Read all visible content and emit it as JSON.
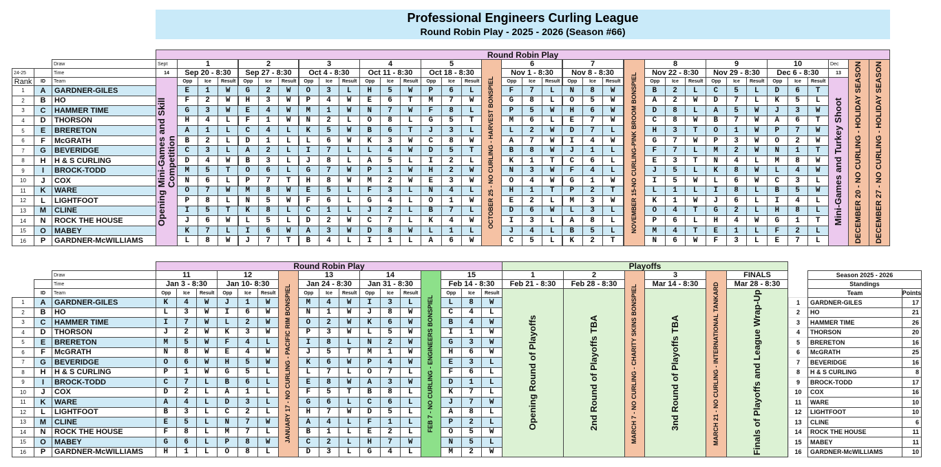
{
  "title": "Professional Engineers Curling League",
  "subtitle": "Round Robin Play - 2025 - 2026 (Season #66)",
  "labels": {
    "draw": "Draw",
    "time": "Time",
    "team": "Team",
    "rank": "Rank",
    "id": "ID",
    "prev_season": "24-25",
    "opp": "Opp",
    "ice": "Ice",
    "result": "Result"
  },
  "colors": {
    "title_bg": "#c9eaf9",
    "round_robin": "#ecc9ee",
    "no_curling": "#f5c2a4",
    "engineers_bonspiel": "#8de08a",
    "playoffs": "#dcf2d4",
    "alt_row": "#cfeaf6"
  },
  "teams": [
    {
      "rank": "1",
      "id": "A",
      "name": "GARDNER-GILES"
    },
    {
      "rank": "2",
      "id": "B",
      "name": "HO"
    },
    {
      "rank": "3",
      "id": "C",
      "name": "HAMMER TIME"
    },
    {
      "rank": "4",
      "id": "D",
      "name": "THORSON"
    },
    {
      "rank": "5",
      "id": "E",
      "name": "BRERETON"
    },
    {
      "rank": "6",
      "id": "F",
      "name": "McGRATH"
    },
    {
      "rank": "7",
      "id": "G",
      "name": "BEVERIDGE"
    },
    {
      "rank": "8",
      "id": "H",
      "name": "H & S CURLING"
    },
    {
      "rank": "9",
      "id": "I",
      "name": "BROCK-TODD"
    },
    {
      "rank": "10",
      "id": "J",
      "name": "COX"
    },
    {
      "rank": "11",
      "id": "K",
      "name": "WARE"
    },
    {
      "rank": "12",
      "id": "L",
      "name": "LIGHTFOOT"
    },
    {
      "rank": "13",
      "id": "M",
      "name": "CLINE"
    },
    {
      "rank": "14",
      "id": "N",
      "name": "ROCK THE HOUSE"
    },
    {
      "rank": "15",
      "id": "O",
      "name": "MABEY"
    },
    {
      "rank": "16",
      "id": "P",
      "name": "GARDNER-McWILLIAMS"
    }
  ],
  "top": {
    "band": "Round Robin Play",
    "opening": {
      "month": "Sept",
      "day": "14",
      "label": "Opening Mini-Games and Skill Competition"
    },
    "mini_games": {
      "month": "Dec",
      "day": "13",
      "label": "Mini-Games and Turkey Shoot"
    },
    "breaks": [
      "OCTOBER 25 - NO CURLING - HARVEST BONSPIEL",
      "NOVEMBER 15-NO CURLING-PINK BROOM BONSPIEL",
      "DECEMBER 20 - NO CURLING - HOLIDAY SEASON",
      "DECEMBER 27 - NO CURLING - HOLIDAY SEASON"
    ],
    "draws": [
      {
        "draw": "1",
        "time": "Sep 20 - 8:30",
        "games": [
          "E1W",
          "F2W",
          "G3W",
          "H4L",
          "A1L",
          "B2L",
          "C3L",
          "D4W",
          "M5T",
          "N6L",
          "O7W",
          "P8L",
          "I5T",
          "J6W",
          "K7L",
          "L8W"
        ]
      },
      {
        "draw": "2",
        "time": "Sep 27 - 8:30",
        "games": [
          "G2W",
          "H3W",
          "E4W",
          "F1W",
          "C4L",
          "D1L",
          "A2L",
          "B3L",
          "O6L",
          "P7T",
          "M8W",
          "N5W",
          "K8L",
          "L5L",
          "I6W",
          "J7T"
        ]
      },
      {
        "draw": "3",
        "time": "Oct 4 - 8:30",
        "games": [
          "O3L",
          "P4W",
          "M1W",
          "N2L",
          "K5W",
          "L6W",
          "I7L",
          "J8L",
          "G7W",
          "H8W",
          "E5L",
          "F6L",
          "C1L",
          "D2W",
          "A3W",
          "B4L"
        ]
      },
      {
        "draw": "4",
        "time": "Oct 11 - 8:30",
        "games": [
          "H5W",
          "E6T",
          "N7W",
          "O8L",
          "B6T",
          "K3W",
          "L4W",
          "A5L",
          "P1W",
          "M2W",
          "F3L",
          "G4L",
          "J2L",
          "C7L",
          "D8W",
          "I1L"
        ]
      },
      {
        "draw": "5",
        "time": "Oct 18 - 8:30",
        "games": [
          "P6L",
          "M7W",
          "F8L",
          "G5T",
          "J3L",
          "C8W",
          "D5T",
          "I2L",
          "H2W",
          "E3W",
          "N4L",
          "O1W",
          "B7L",
          "K4W",
          "L1L",
          "A6W"
        ]
      },
      {
        "draw": "6",
        "time": "Nov 1 - 8:30",
        "games": [
          "F7L",
          "G8L",
          "P5W",
          "M6L",
          "L2W",
          "A7W",
          "B8W",
          "K1T",
          "N3W",
          "O4W",
          "H1T",
          "E2L",
          "D6W",
          "I3L",
          "J4L",
          "C5L"
        ]
      },
      {
        "draw": "7",
        "time": "Nov 8 - 8:30",
        "games": [
          "N8W",
          "O5W",
          "H6W",
          "E7W",
          "D7L",
          "I4W",
          "J1L",
          "C6L",
          "F4L",
          "G1W",
          "P2T",
          "M3W",
          "L3L",
          "A8L",
          "B5L",
          "K2T"
        ]
      },
      {
        "draw": "8",
        "time": "Nov 22 - 8:30",
        "games": [
          "B2L",
          "A2W",
          "D8L",
          "C8W",
          "H3T",
          "G7W",
          "F7L",
          "E3T",
          "J5L",
          "I5W",
          "L1L",
          "K1W",
          "O4T",
          "P6L",
          "M4T",
          "N6W"
        ]
      },
      {
        "draw": "9",
        "time": "Nov 29 - 8:30",
        "games": [
          "C5L",
          "D7L",
          "A5W",
          "B7W",
          "O1W",
          "P3W",
          "M2W",
          "N4L",
          "K8W",
          "L6W",
          "I8L",
          "J6L",
          "G2L",
          "H4W",
          "E1L",
          "F3L"
        ]
      },
      {
        "draw": "10",
        "time": "Dec 6 - 8:30",
        "games": [
          "D6T",
          "K5L",
          "J3W",
          "A6T",
          "P7W",
          "O2W",
          "N1T",
          "M8W",
          "L4W",
          "C3L",
          "B5W",
          "I4L",
          "H8L",
          "G1T",
          "F2L",
          "E7L"
        ]
      }
    ]
  },
  "bottom": {
    "band": "Round Robin Play",
    "playoffs_band": "Playoffs",
    "breaks": [
      "JANUARY 17 - NO CURLING - PACIFIC RIM BONSPIEL",
      "FEB 7 - NO CURLING - ENGINEERS BONSPIEL",
      "MARCH 7 - NO CURLING - CHARITY SKINS BONSPIEL",
      "MARCH 21 - NO CURLING - INTERNATIONAL TANKARD"
    ],
    "draws": [
      {
        "draw": "11",
        "time": "Jan 3 - 8:30",
        "games": [
          "K4W",
          "L3W",
          "I7W",
          "J2W",
          "M5W",
          "N8W",
          "O6W",
          "P1W",
          "C7L",
          "D2L",
          "A4L",
          "B3L",
          "E5L",
          "F8L",
          "G6L",
          "H1L"
        ]
      },
      {
        "draw": "12",
        "time": "Jan 10- 8:30",
        "games": [
          "J1W",
          "I6W",
          "L2W",
          "K3W",
          "F4L",
          "E4W",
          "H5W",
          "G5L",
          "B6L",
          "A1L",
          "D3L",
          "C2L",
          "N7W",
          "M7L",
          "P8W",
          "O8L"
        ]
      },
      {
        "draw": "13",
        "time": "Jan 24 - 8:30",
        "games": [
          "M4W",
          "N1W",
          "O2W",
          "P3W",
          "I8L",
          "J5T",
          "K6W",
          "L7L",
          "E8W",
          "F5T",
          "G6L",
          "H7W",
          "A4L",
          "B1L",
          "C2L",
          "D3L"
        ]
      },
      {
        "draw": "14",
        "time": "Jan 31 - 8:30",
        "games": [
          "I3L",
          "J8W",
          "K6W",
          "L5W",
          "N2W",
          "M1W",
          "P4W",
          "O7L",
          "A3W",
          "B8L",
          "C6L",
          "D5L",
          "F1L",
          "E2L",
          "H7W",
          "G4L"
        ]
      },
      {
        "draw": "15",
        "time": "Feb 14 - 8:30",
        "games": [
          "L8W",
          "C4L",
          "B4W",
          "I1W",
          "G3W",
          "H6W",
          "E3L",
          "F6L",
          "D1L",
          "K7L",
          "J7W",
          "A8L",
          "P2L",
          "O5W",
          "N5L",
          "M2W"
        ]
      }
    ],
    "playoffs": [
      {
        "draw": "1",
        "time": "Feb 21 - 8:30",
        "label": "Opening Round of Playoffs"
      },
      {
        "draw": "2",
        "time": "Feb 28 - 8:30",
        "label": "2nd Round of Playoffs TBA"
      },
      {
        "draw": "3",
        "time": "Mar 14 - 8:30",
        "label": "3nd Round of Playoffs TBA"
      },
      {
        "draw": "FINALS",
        "time": "Mar 28 - 8:30",
        "label": "Finals of Playoffs and League Wrap-Up"
      }
    ]
  },
  "standings": {
    "season": "Season 2025 - 2026",
    "title": "Standings",
    "team_header": "Team",
    "points_header": "Points",
    "rows": [
      {
        "pos": "1",
        "team": "GARDNER-GILES",
        "points": "17"
      },
      {
        "pos": "2",
        "team": "HO",
        "points": "21"
      },
      {
        "pos": "3",
        "team": "HAMMER TIME",
        "points": "26"
      },
      {
        "pos": "4",
        "team": "THORSON",
        "points": "20"
      },
      {
        "pos": "5",
        "team": "BRERETON",
        "points": "16"
      },
      {
        "pos": "6",
        "team": "McGRATH",
        "points": "25"
      },
      {
        "pos": "7",
        "team": "BEVERIDGE",
        "points": "16"
      },
      {
        "pos": "8",
        "team": "H & S CURLING",
        "points": "8"
      },
      {
        "pos": "9",
        "team": "BROCK-TODD",
        "points": "17"
      },
      {
        "pos": "10",
        "team": "COX",
        "points": "16"
      },
      {
        "pos": "11",
        "team": "WARE",
        "points": "10"
      },
      {
        "pos": "12",
        "team": "LIGHTFOOT",
        "points": "10"
      },
      {
        "pos": "13",
        "team": "CLINE",
        "points": "6"
      },
      {
        "pos": "14",
        "team": "ROCK THE HOUSE",
        "points": "11"
      },
      {
        "pos": "15",
        "team": "MABEY",
        "points": "11"
      },
      {
        "pos": "16",
        "team": "GARDNER-McWILLIAMS",
        "points": "10"
      }
    ]
  }
}
